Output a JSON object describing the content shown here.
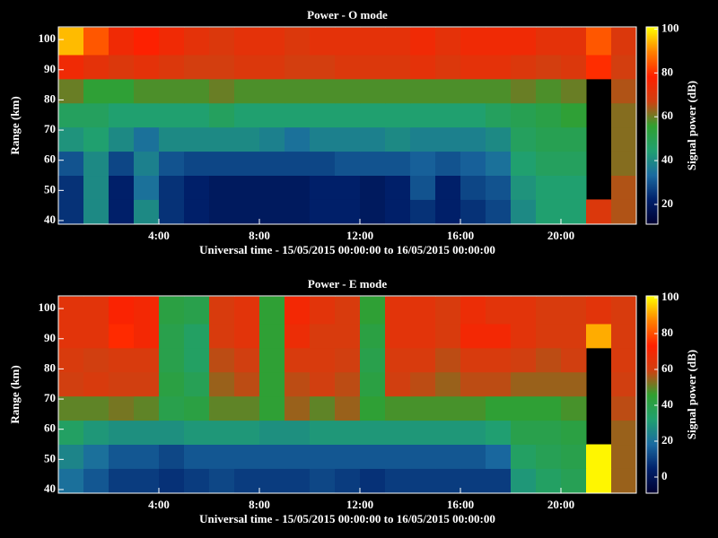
{
  "chart_data": [
    {
      "type": "heatmap",
      "title": "Power - O mode",
      "xlabel": "Universal time - 15/05/2015 00:00:00 to 16/05/2015 00:00:00",
      "ylabel": "Range (km)",
      "zlabel": "Signal power (dB)",
      "x": [
        0,
        1,
        2,
        3,
        4,
        5,
        6,
        7,
        8,
        9,
        10,
        11,
        12,
        13,
        14,
        15,
        16,
        17,
        18,
        19,
        20,
        21,
        22,
        23
      ],
      "y": [
        39,
        47,
        55,
        63,
        71,
        79,
        87,
        95,
        104
      ],
      "xlim": [
        0,
        23
      ],
      "ylim": [
        38.8,
        104.2
      ],
      "zlim": [
        11,
        101
      ],
      "xticks": [
        {
          "value": 4,
          "label": "4:00"
        },
        {
          "value": 8,
          "label": "8:00"
        },
        {
          "value": 12,
          "label": "12:00"
        },
        {
          "value": 16,
          "label": "16:00"
        },
        {
          "value": 20,
          "label": "20:00"
        }
      ],
      "yticks": [
        40,
        50,
        60,
        70,
        80,
        90,
        100
      ],
      "zticks": [
        20,
        40,
        60,
        80,
        100
      ],
      "colormap": [
        "#000030",
        "#00206a",
        "#1a6aa0",
        "#20a070",
        "#30a030",
        "#d04010",
        "#ff2000",
        "#ff8000",
        "#ffff00"
      ],
      "values": [
        [
          25,
          40,
          22,
          40,
          25,
          22,
          20,
          20,
          20,
          20,
          22,
          22,
          20,
          22,
          25,
          22,
          25,
          28,
          40,
          45,
          45,
          70,
          65
        ],
        [
          25,
          40,
          22,
          35,
          25,
          22,
          20,
          20,
          20,
          20,
          22,
          22,
          20,
          22,
          30,
          22,
          28,
          30,
          42,
          45,
          45,
          null,
          65
        ],
        [
          30,
          40,
          28,
          38,
          30,
          28,
          28,
          28,
          28,
          28,
          28,
          30,
          30,
          30,
          32,
          30,
          32,
          35,
          45,
          48,
          48,
          null,
          62
        ],
        [
          42,
          45,
          40,
          35,
          40,
          40,
          40,
          40,
          38,
          35,
          38,
          38,
          38,
          40,
          38,
          38,
          38,
          40,
          48,
          50,
          50,
          null,
          62
        ],
        [
          48,
          48,
          45,
          45,
          45,
          45,
          48,
          45,
          45,
          45,
          45,
          45,
          45,
          45,
          45,
          45,
          45,
          48,
          50,
          52,
          55,
          null,
          62
        ],
        [
          60,
          55,
          55,
          58,
          58,
          58,
          60,
          58,
          58,
          58,
          58,
          58,
          58,
          58,
          58,
          58,
          58,
          58,
          60,
          58,
          60,
          null,
          65
        ],
        [
          75,
          72,
          70,
          72,
          70,
          68,
          68,
          70,
          70,
          68,
          68,
          70,
          70,
          70,
          72,
          70,
          72,
          72,
          70,
          68,
          70,
          80,
          68
        ],
        [
          95,
          85,
          75,
          78,
          75,
          72,
          70,
          72,
          72,
          70,
          72,
          72,
          72,
          72,
          75,
          72,
          75,
          75,
          75,
          72,
          72,
          85,
          70
        ]
      ]
    },
    {
      "type": "heatmap",
      "title": "Power - E mode",
      "xlabel": "Universal time - 15/05/2015 00:00:00 to 16/05/2015 00:00:00",
      "ylabel": "Range (km)",
      "zlabel": "Signal power (dB)",
      "x": [
        0,
        1,
        2,
        3,
        4,
        5,
        6,
        7,
        8,
        9,
        10,
        11,
        12,
        13,
        14,
        15,
        16,
        17,
        18,
        19,
        20,
        21,
        22,
        23
      ],
      "y": [
        39,
        47,
        55,
        63,
        71,
        79,
        87,
        95,
        104
      ],
      "xlim": [
        0,
        23
      ],
      "ylim": [
        38.8,
        104.2
      ],
      "zlim": [
        -9,
        101
      ],
      "xticks": [
        {
          "value": 4,
          "label": "4:00"
        },
        {
          "value": 8,
          "label": "8:00"
        },
        {
          "value": 12,
          "label": "12:00"
        },
        {
          "value": 16,
          "label": "16:00"
        },
        {
          "value": 20,
          "label": "20:00"
        }
      ],
      "yticks": [
        40,
        50,
        60,
        70,
        80,
        90,
        100
      ],
      "zticks": [
        0,
        20,
        40,
        60,
        80,
        100
      ],
      "colormap": [
        "#000030",
        "#00206a",
        "#1a6aa0",
        "#20a070",
        "#30a030",
        "#d04010",
        "#ff2000",
        "#ff8000",
        "#ffff00"
      ],
      "values": [
        [
          20,
          15,
          10,
          10,
          8,
          10,
          12,
          10,
          10,
          10,
          12,
          10,
          8,
          10,
          10,
          10,
          10,
          10,
          30,
          35,
          38,
          100,
          55
        ],
        [
          25,
          20,
          15,
          15,
          12,
          15,
          15,
          15,
          15,
          15,
          15,
          15,
          15,
          15,
          15,
          15,
          15,
          18,
          35,
          38,
          40,
          100,
          55
        ],
        [
          35,
          30,
          28,
          28,
          28,
          30,
          30,
          30,
          28,
          28,
          30,
          30,
          30,
          30,
          30,
          30,
          30,
          32,
          40,
          40,
          42,
          null,
          55
        ],
        [
          50,
          50,
          52,
          50,
          40,
          42,
          50,
          50,
          45,
          55,
          50,
          55,
          45,
          48,
          48,
          48,
          48,
          45,
          45,
          45,
          48,
          null,
          58
        ],
        [
          60,
          62,
          60,
          60,
          42,
          38,
          55,
          58,
          45,
          58,
          60,
          58,
          42,
          60,
          58,
          55,
          58,
          58,
          55,
          55,
          55,
          null,
          60
        ],
        [
          62,
          60,
          62,
          62,
          40,
          35,
          58,
          60,
          45,
          62,
          62,
          60,
          40,
          62,
          62,
          58,
          62,
          62,
          60,
          58,
          60,
          null,
          62
        ],
        [
          65,
          65,
          75,
          70,
          40,
          35,
          62,
          65,
          45,
          68,
          62,
          62,
          42,
          65,
          65,
          62,
          70,
          70,
          65,
          62,
          62,
          92,
          62
        ],
        [
          65,
          65,
          72,
          70,
          42,
          40,
          62,
          65,
          45,
          70,
          65,
          62,
          45,
          65,
          65,
          62,
          68,
          65,
          65,
          62,
          62,
          65,
          62
        ]
      ]
    }
  ]
}
